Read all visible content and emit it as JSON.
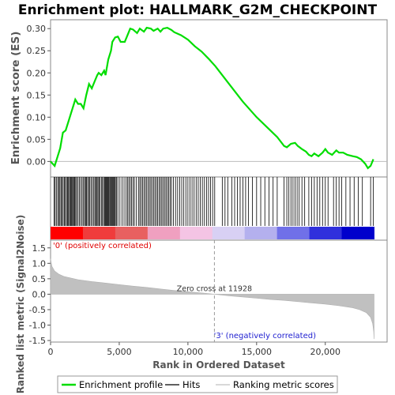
{
  "chart_data": {
    "type": "line",
    "title": "Enrichment plot: HALLMARK_G2M_CHECKPOINT",
    "es_panel": {
      "ylabel": "Enrichment score (ES)",
      "ylim": [
        -0.035,
        0.32
      ],
      "yticks": [
        "0.00",
        "0.05",
        "0.10",
        "0.15",
        "0.20",
        "0.25",
        "0.30"
      ],
      "ytick_values": [
        0.0,
        0.05,
        0.1,
        0.15,
        0.2,
        0.25,
        0.3
      ],
      "series": [
        {
          "name": "Enrichment profile",
          "color": "#00dd00",
          "x": [
            0,
            300,
            500,
            700,
            900,
            1100,
            1300,
            1500,
            1700,
            1800,
            2000,
            2200,
            2400,
            2600,
            2800,
            3000,
            3200,
            3400,
            3500,
            3700,
            3900,
            4000,
            4200,
            4400,
            4500,
            4700,
            4900,
            5100,
            5400,
            5600,
            5800,
            6000,
            6300,
            6500,
            6800,
            7000,
            7300,
            7500,
            7800,
            8000,
            8200,
            8500,
            8800,
            9000,
            9500,
            10000,
            10500,
            11000,
            11500,
            12000,
            13000,
            14000,
            15000,
            16000,
            16500,
            17000,
            17200,
            17500,
            17800,
            18000,
            18300,
            18600,
            18800,
            19000,
            19200,
            19500,
            19800,
            20000,
            20200,
            20500,
            20800,
            21000,
            21300,
            21600,
            22000,
            22300,
            22600,
            22900,
            23100,
            23300,
            23500
          ],
          "y": [
            0.0,
            -0.01,
            0.01,
            0.03,
            0.065,
            0.07,
            0.09,
            0.11,
            0.13,
            0.14,
            0.13,
            0.13,
            0.12,
            0.15,
            0.175,
            0.165,
            0.18,
            0.195,
            0.2,
            0.195,
            0.205,
            0.195,
            0.23,
            0.25,
            0.27,
            0.28,
            0.282,
            0.27,
            0.27,
            0.285,
            0.3,
            0.298,
            0.29,
            0.3,
            0.293,
            0.302,
            0.3,
            0.295,
            0.3,
            0.293,
            0.3,
            0.302,
            0.297,
            0.292,
            0.285,
            0.275,
            0.26,
            0.248,
            0.232,
            0.215,
            0.175,
            0.135,
            0.1,
            0.07,
            0.055,
            0.035,
            0.032,
            0.04,
            0.042,
            0.035,
            0.028,
            0.022,
            0.015,
            0.012,
            0.018,
            0.012,
            0.02,
            0.028,
            0.02,
            0.015,
            0.025,
            0.02,
            0.02,
            0.015,
            0.012,
            0.01,
            0.005,
            -0.005,
            -0.015,
            -0.01,
            0.005
          ]
        }
      ],
      "hit_ranks": [
        250,
        330,
        420,
        520,
        600,
        680,
        760,
        840,
        920,
        1000,
        1080,
        1160,
        1240,
        1300,
        1380,
        1440,
        1500,
        1560,
        1620,
        1700,
        1760,
        1830,
        1900,
        2000,
        2100,
        2200,
        2300,
        2400,
        2480,
        2550,
        2620,
        2700,
        2780,
        2860,
        2950,
        3050,
        3150,
        3230,
        3300,
        3380,
        3450,
        3520,
        3600,
        3700,
        3780,
        3860,
        3940,
        4000,
        4050,
        4110,
        4170,
        4230,
        4300,
        4360,
        4420,
        4480,
        4540,
        4600,
        4660,
        4720,
        4800,
        4900,
        5050,
        5200,
        5350,
        5500,
        5600,
        5700,
        5800,
        5900,
        6000,
        6100,
        6250,
        6400,
        6500,
        6600,
        6700,
        6800,
        6900,
        7000,
        7100,
        7200,
        7300,
        7400,
        7500,
        7600,
        7700,
        7800,
        7900,
        8000,
        8100,
        8200,
        8300,
        8400,
        8500,
        8600,
        8700,
        8800,
        8950,
        9100,
        9250,
        9400,
        9550,
        9700,
        9850,
        10000,
        10150,
        10300,
        10450,
        10600,
        10750,
        10900,
        11050,
        11200,
        11350,
        11500,
        11650,
        11800,
        11950,
        12500,
        12700,
        12900,
        13200,
        13400,
        13600,
        13800,
        14000,
        14200,
        14400,
        14700,
        15000,
        15300,
        15600,
        15900,
        16200,
        16500,
        17000,
        17200,
        17350,
        17500,
        17650,
        17800,
        17950,
        18100,
        18300,
        18500,
        18800,
        19000,
        19200,
        19400,
        19600,
        19800,
        20000,
        20200,
        20600,
        20800,
        21000,
        21200,
        21500,
        21800,
        22100,
        22400,
        22700,
        23300,
        23500
      ]
    },
    "heat_bar": {
      "colors": [
        "#ff0000",
        "#f03c3c",
        "#e86060",
        "#f0a0c0",
        "#f4c4e4",
        "#d8d0f4",
        "#b4b0ee",
        "#7070e8",
        "#3030dc",
        "#0000cc"
      ]
    },
    "rank_panel": {
      "ylabel": "Ranked list metric (Signal2Noise)",
      "xlabel": "Rank in Ordered Dataset",
      "ylim": [
        -1.55,
        1.75
      ],
      "yticks": [
        "-1.5",
        "-1.0",
        "-0.5",
        "0.0",
        "0.5",
        "1.0",
        "1.5"
      ],
      "ytick_values": [
        -1.5,
        -1.0,
        -0.5,
        0.0,
        0.5,
        1.0,
        1.5
      ],
      "xlim": [
        0,
        24500
      ],
      "xticks": [
        "0",
        "5,000",
        "10,000",
        "15,000",
        "20,000"
      ],
      "xtick_values": [
        0,
        5000,
        10000,
        15000,
        20000
      ],
      "metric": {
        "x": [
          0,
          100,
          300,
          600,
          1000,
          2000,
          3000,
          4000,
          5000,
          6000,
          7000,
          8000,
          9000,
          10000,
          11000,
          11928,
          13000,
          14000,
          15000,
          16000,
          17000,
          18000,
          19000,
          20000,
          21000,
          22000,
          22500,
          23000,
          23300,
          23450,
          23520,
          23550
        ],
        "y": [
          1.15,
          0.9,
          0.75,
          0.65,
          0.57,
          0.47,
          0.41,
          0.36,
          0.31,
          0.26,
          0.22,
          0.17,
          0.12,
          0.08,
          0.04,
          0.0,
          -0.05,
          -0.09,
          -0.13,
          -0.17,
          -0.2,
          -0.24,
          -0.28,
          -0.32,
          -0.37,
          -0.44,
          -0.5,
          -0.6,
          -0.75,
          -0.95,
          -1.2,
          -1.45
        ]
      },
      "zero_cross_rank": 11928,
      "zero_cross_label": "Zero cross at 11928",
      "pos_label": "'0' (positively correlated)",
      "neg_label": "'3' (negatively correlated)"
    },
    "legend": {
      "placement": "bottom",
      "items": [
        {
          "label": "Enrichment profile",
          "color": "#00dd00"
        },
        {
          "label": "Hits",
          "color": "#000000"
        },
        {
          "label": "Ranking metric scores",
          "color": "#c0c0c0"
        }
      ]
    }
  }
}
